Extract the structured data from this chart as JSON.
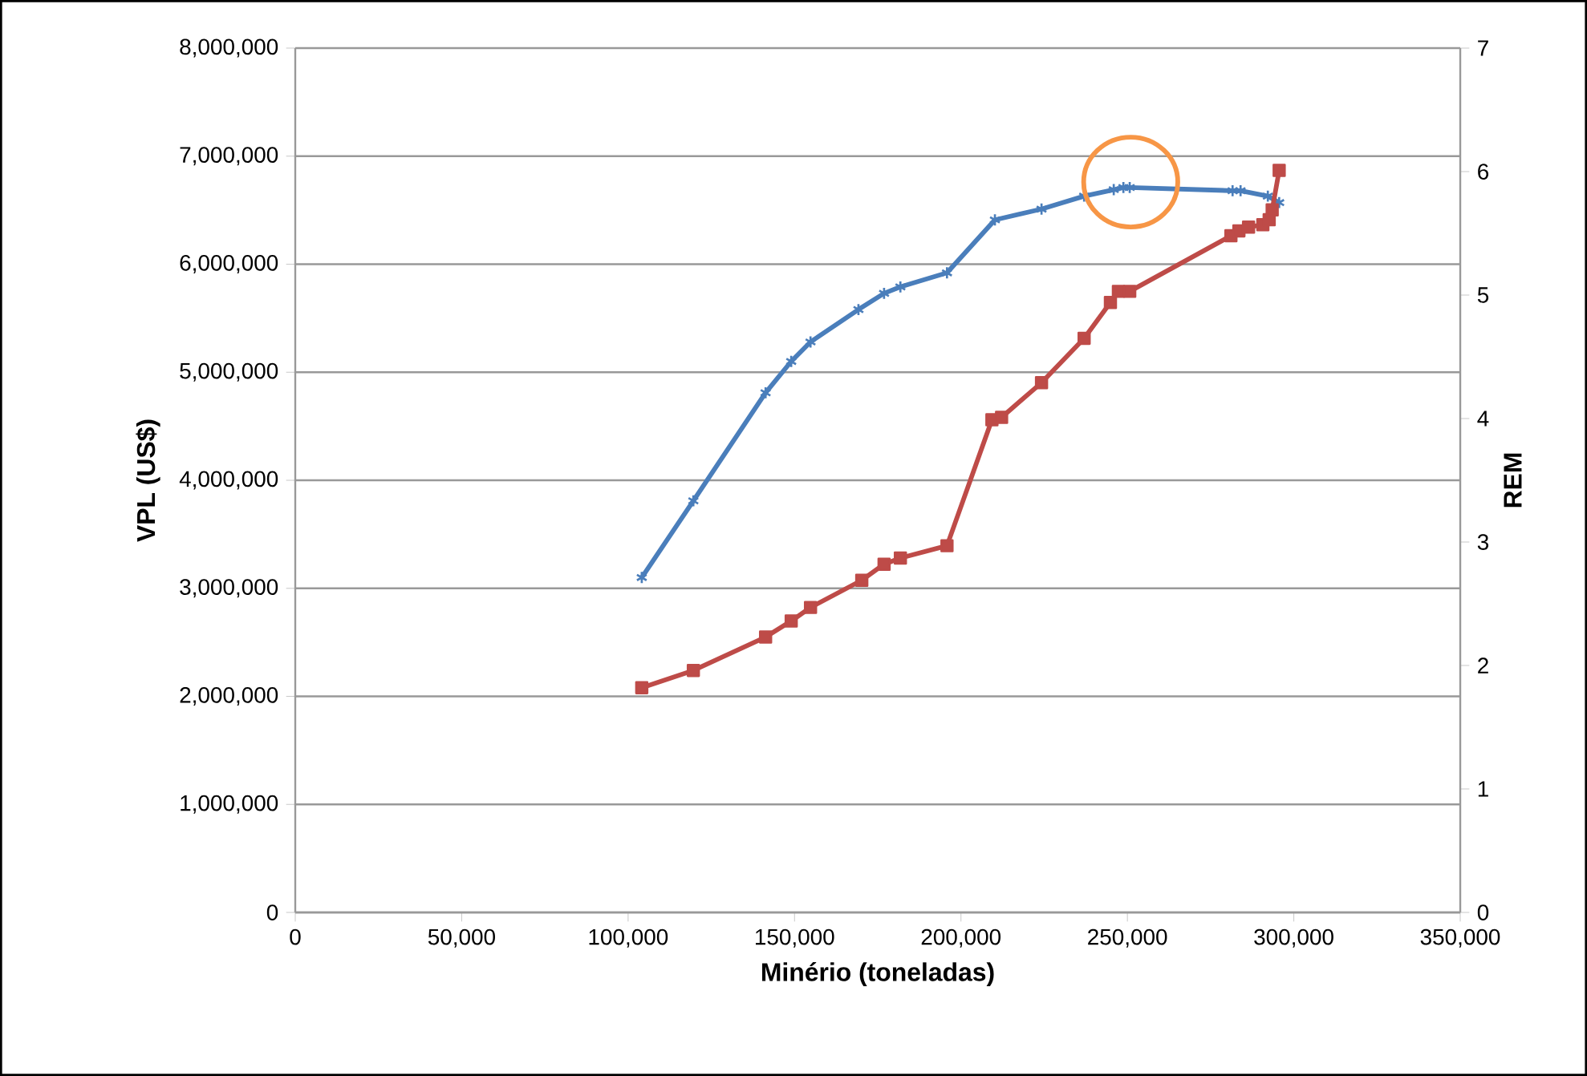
{
  "chart_data": {
    "type": "line",
    "xlabel": "Minério (toneladas)",
    "ylabel": "VPL (US$)",
    "y2label": "REM",
    "xlim": [
      0,
      350000
    ],
    "xticks": [
      {
        "value": 0,
        "label": "0"
      },
      {
        "value": 50000,
        "label": "50,000"
      },
      {
        "value": 100000,
        "label": "100,000"
      },
      {
        "value": 150000,
        "label": "150,000"
      },
      {
        "value": 200000,
        "label": "200,000"
      },
      {
        "value": 250000,
        "label": "250,000"
      },
      {
        "value": 300000,
        "label": "300,000"
      },
      {
        "value": 350000,
        "label": "350,000"
      }
    ],
    "ylim": [
      0,
      8000000
    ],
    "yticks": [
      {
        "value": 0,
        "label": "0"
      },
      {
        "value": 1000000,
        "label": "1,000,000"
      },
      {
        "value": 2000000,
        "label": "2,000,000"
      },
      {
        "value": 3000000,
        "label": "3,000,000"
      },
      {
        "value": 4000000,
        "label": "4,000,000"
      },
      {
        "value": 5000000,
        "label": "5,000,000"
      },
      {
        "value": 6000000,
        "label": "6,000,000"
      },
      {
        "value": 7000000,
        "label": "7,000,000"
      },
      {
        "value": 8000000,
        "label": "8,000,000"
      }
    ],
    "y2lim": [
      0,
      7
    ],
    "y2ticks": [
      0,
      1,
      2,
      3,
      4,
      5,
      6,
      7
    ],
    "grid": "y",
    "series": [
      {
        "color": "#4a7ebb",
        "marker": "cross",
        "x": [
          104100,
          119600,
          141300,
          149000,
          154800,
          169200,
          176900,
          181800,
          195800,
          210200,
          224200,
          237000,
          245900,
          248800,
          250700,
          281600,
          284000,
          292200,
          295600
        ],
        "values": [
          3100000,
          3810000,
          4810000,
          5100000,
          5280000,
          5580000,
          5730000,
          5790000,
          5920000,
          6410000,
          6510000,
          6630000,
          6690000,
          6710000,
          6710000,
          6680000,
          6680000,
          6630000,
          6570000
        ]
      },
      {
        "color": "#be4b48",
        "marker": "square",
        "axis": "y2",
        "x": [
          104100,
          119600,
          141300,
          149000,
          154800,
          170200,
          176900,
          181800,
          195800,
          209300,
          212200,
          224200,
          237000,
          244900,
          247300,
          250700,
          281100,
          283500,
          286400,
          290700,
          292600,
          293500,
          295600
        ],
        "values": [
          1.82,
          1.96,
          2.23,
          2.36,
          2.47,
          2.69,
          2.82,
          2.87,
          2.97,
          3.99,
          4.01,
          4.29,
          4.65,
          4.94,
          5.03,
          5.03,
          5.48,
          5.52,
          5.55,
          5.57,
          5.61,
          5.69,
          6.01
        ]
      }
    ]
  }
}
